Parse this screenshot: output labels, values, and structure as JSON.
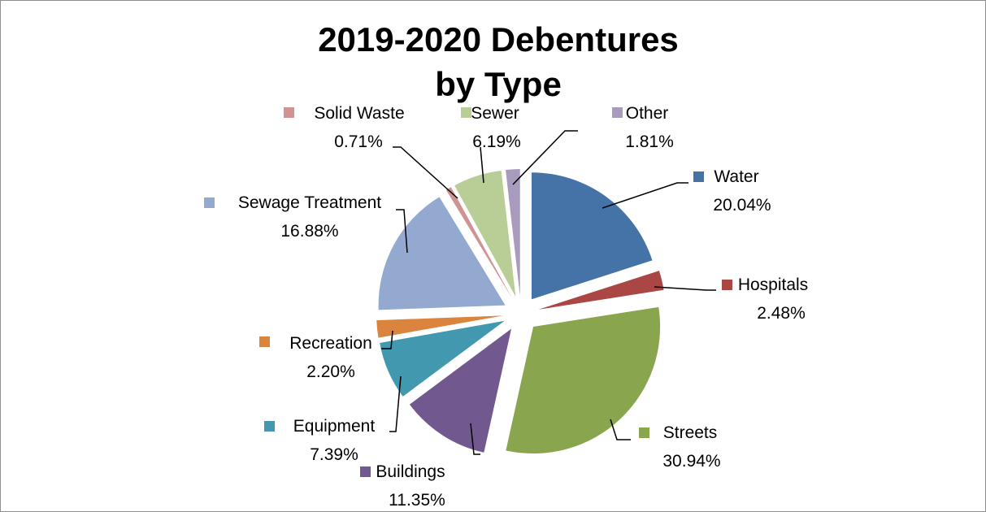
{
  "chart_data": {
    "type": "pie",
    "title_line1": "2019-2020 Debentures",
    "title_line2": "by Type",
    "slices": [
      {
        "name": "Water",
        "value": 20.04,
        "label": "20.04%",
        "color": "#4572a7"
      },
      {
        "name": "Hospitals",
        "value": 2.48,
        "label": "2.48%",
        "color": "#aa4643"
      },
      {
        "name": "Streets",
        "value": 30.94,
        "label": "30.94%",
        "color": "#89a54e"
      },
      {
        "name": "Buildings",
        "value": 11.35,
        "label": "11.35%",
        "color": "#71588f"
      },
      {
        "name": "Equipment",
        "value": 7.39,
        "label": "7.39%",
        "color": "#4198af"
      },
      {
        "name": "Recreation",
        "value": 2.2,
        "label": "2.20%",
        "color": "#db843d"
      },
      {
        "name": "Sewage Treatment",
        "value": 16.88,
        "label": "16.88%",
        "color": "#93a9d0"
      },
      {
        "name": "Solid Waste",
        "value": 0.71,
        "label": "0.71%",
        "color": "#d09392"
      },
      {
        "name": "Sewer",
        "value": 6.19,
        "label": "6.19%",
        "color": "#b9cd96"
      },
      {
        "name": "Other",
        "value": 1.81,
        "label": "1.81%",
        "color": "#a99bbd"
      }
    ],
    "legend": "per-slice labels with color markers",
    "exploded": true
  }
}
